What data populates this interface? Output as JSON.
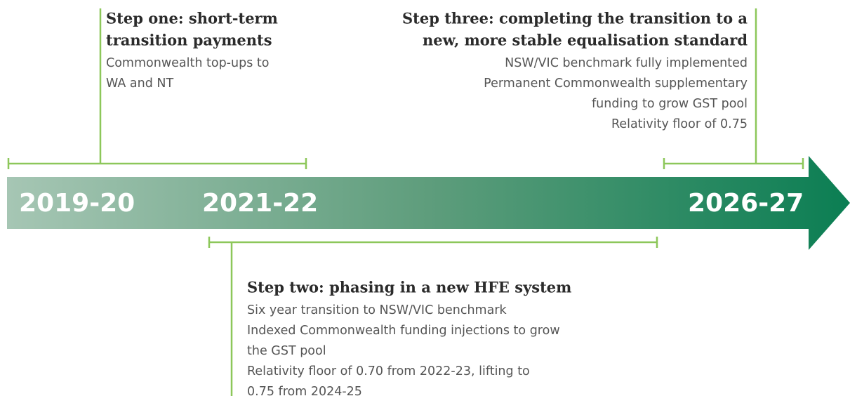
{
  "years": [
    "2019-20",
    "2021-22",
    "2026-27"
  ],
  "steps": [
    {
      "title": [
        "Step one: short-term",
        "transition payments"
      ],
      "description": [
        "Commonwealth top-ups to",
        "WA and NT"
      ]
    },
    {
      "title": [
        "Step two: phasing in a new HFE system"
      ],
      "description": [
        "Six year transition to NSW/VIC benchmark",
        "Indexed Commonwealth funding injections to grow",
        "the GST pool",
        "Relativity floor of 0.70 from 2022-23, lifting to",
        "0.75 from 2024-25"
      ]
    },
    {
      "title": [
        "Step three: completing the transition to a",
        "new, more stable equalisation standard"
      ],
      "description": [
        "NSW/VIC benchmark fully implemented",
        "Permanent Commonwealth supplementary",
        "funding to grow GST pool",
        "Relativity floor of 0.75"
      ]
    }
  ]
}
